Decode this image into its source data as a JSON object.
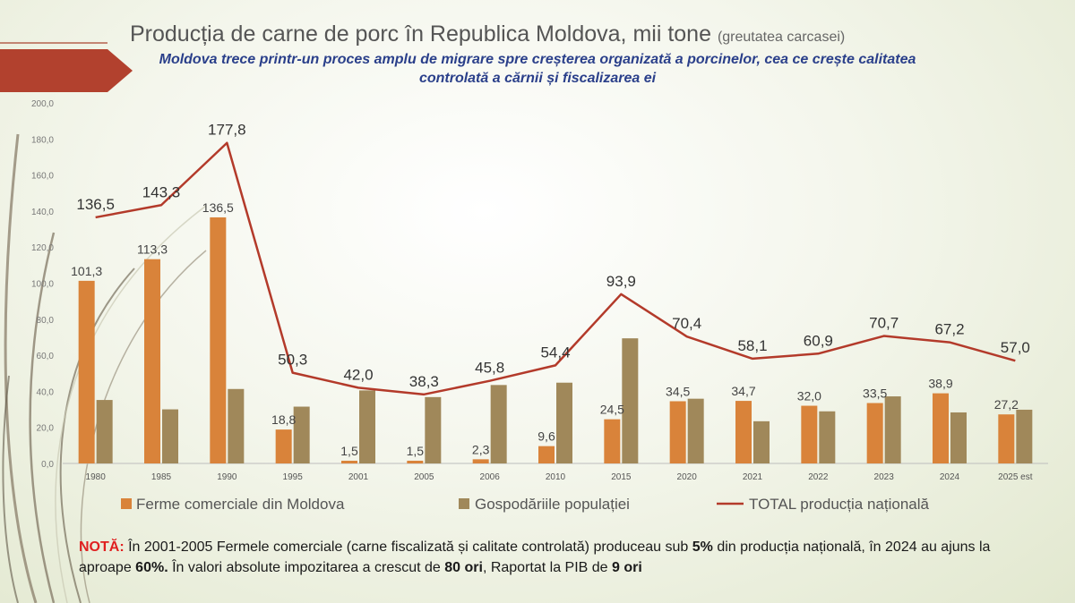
{
  "title": "Producția de carne de porc în Republica Moldova, mii tone",
  "title_suffix": "(greutatea carcasei)",
  "subtitle": "Moldova trece printr-un proces amplu de migrare spre creșterea organizată a porcinelor, cea ce crește calitatea controlată a cărnii și fiscalizarea ei",
  "colors": {
    "commercial": "#d9833a",
    "household": "#a0885a",
    "total": "#b33a2a",
    "accent_arrow": "#b2412e"
  },
  "chart_data": {
    "type": "bar",
    "categories": [
      "1980",
      "1985",
      "1990",
      "1995",
      "2001",
      "2005",
      "2006",
      "2010",
      "2015",
      "2020",
      "2021",
      "2022",
      "2023",
      "2024",
      "2025 est"
    ],
    "series": [
      {
        "name": "Ferme comerciale din Moldova",
        "kind": "bar",
        "values": [
          101.3,
          113.3,
          136.5,
          18.8,
          1.5,
          1.5,
          2.3,
          9.6,
          24.5,
          34.5,
          34.7,
          32.0,
          33.5,
          38.9,
          27.2
        ],
        "labels": [
          "101,3",
          "113,3",
          "136,5",
          "18,8",
          "1,5",
          "1,5",
          "2,3",
          "9,6",
          "24,5",
          "34,5",
          "34,7",
          "32,0",
          "33,5",
          "38,9",
          "27,2"
        ]
      },
      {
        "name": "Gospodăriile populației",
        "kind": "bar",
        "values": [
          35.2,
          30.0,
          41.3,
          31.5,
          40.5,
          36.8,
          43.5,
          44.8,
          69.4,
          35.9,
          23.4,
          28.9,
          37.2,
          28.3,
          29.8
        ]
      },
      {
        "name": "TOTAL producția națională",
        "kind": "line",
        "values": [
          136.5,
          143.3,
          177.8,
          50.3,
          42.0,
          38.3,
          45.8,
          54.4,
          93.9,
          70.4,
          58.1,
          60.9,
          70.7,
          67.2,
          57.0
        ],
        "labels": [
          "136,5",
          "143,3",
          "177,8",
          "50,3",
          "42,0",
          "38,3",
          "45,8",
          "54,4",
          "93,9",
          "70,4",
          "58,1",
          "60,9",
          "70,7",
          "67,2",
          "57,0"
        ]
      }
    ],
    "y_ticks": [
      "0,0",
      "20,0",
      "40,0",
      "60,0",
      "80,0",
      "100,0",
      "120,0",
      "140,0",
      "160,0",
      "180,0",
      "200,0"
    ],
    "ylim": [
      0,
      200
    ],
    "legend_position": "bottom"
  },
  "note": {
    "label": "NOTĂ:",
    "text_1": " În 2001-2005 Fermele comerciale (carne fiscalizată și calitate controlată) produceau sub ",
    "bold_1": "5%",
    "text_2": " din producția națională, în 2024 au ajuns la aproape ",
    "bold_2": "60%.",
    "text_3": " În valori absolute impozitarea a crescut de ",
    "bold_3": "80 ori",
    "text_4": ", Raportat la PIB de ",
    "bold_4": "9 ori"
  }
}
